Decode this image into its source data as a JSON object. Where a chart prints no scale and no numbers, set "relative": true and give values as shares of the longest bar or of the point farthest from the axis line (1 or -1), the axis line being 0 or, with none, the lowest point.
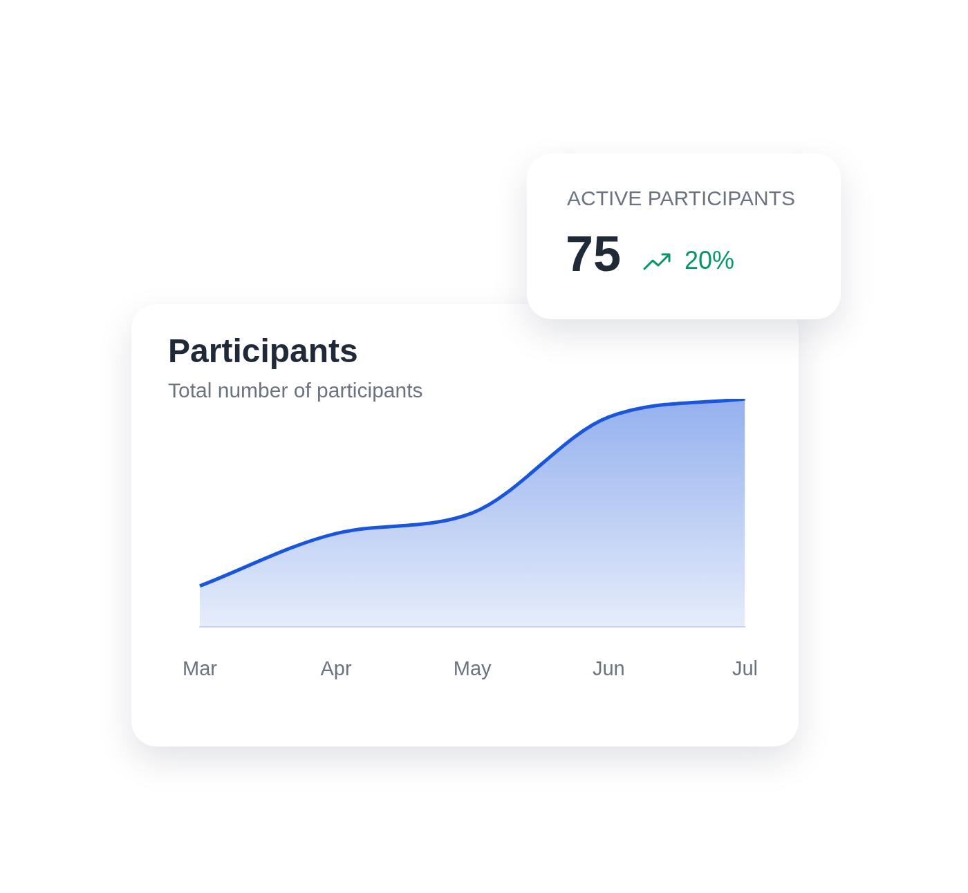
{
  "chart_data": [
    {
      "type": "other",
      "title": "ACTIVE PARTICIPANTS",
      "annotations": [
        "75",
        "20%"
      ]
    },
    {
      "type": "area",
      "title": "Participants",
      "subtitle": "Total number of participants",
      "categories": [
        "Mar",
        "Apr",
        "May",
        "Jun",
        "Jul"
      ],
      "values": [
        0.18,
        0.41,
        0.5,
        0.92,
        1
      ],
      "color": "#1a56db",
      "relative": true
    }
  ]
}
